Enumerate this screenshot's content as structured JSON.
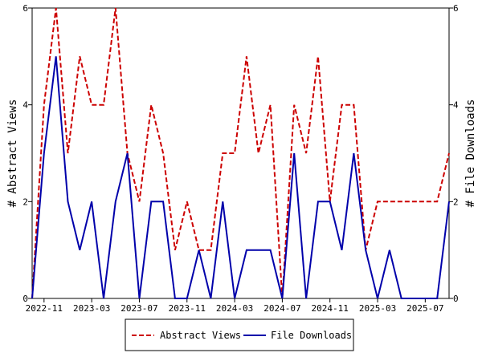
{
  "chart_data": {
    "type": "line",
    "x": [
      "2022-10",
      "2022-11",
      "2022-12",
      "2023-01",
      "2023-02",
      "2023-03",
      "2023-04",
      "2023-05",
      "2023-06",
      "2023-07",
      "2023-08",
      "2023-09",
      "2023-10",
      "2023-11",
      "2023-12",
      "2024-01",
      "2024-02",
      "2024-03",
      "2024-04",
      "2024-05",
      "2024-06",
      "2024-07",
      "2024-08",
      "2024-09",
      "2024-10",
      "2024-11",
      "2024-12",
      "2025-01",
      "2025-02",
      "2025-03",
      "2025-04",
      "2025-05",
      "2025-06",
      "2025-07",
      "2025-08",
      "2025-09"
    ],
    "x_ticks": [
      "2022-11",
      "2023-03",
      "2023-07",
      "2023-11",
      "2024-03",
      "2024-07",
      "2024-11",
      "2025-03",
      "2025-07"
    ],
    "series": [
      {
        "name": "Abstract Views",
        "axis": "left",
        "color": "#cc0000",
        "dash": "dashed",
        "values": [
          0,
          4,
          6,
          3,
          5,
          4,
          4,
          6,
          3,
          2,
          4,
          3,
          1,
          2,
          1,
          1,
          3,
          3,
          5,
          3,
          4,
          0,
          4,
          3,
          5,
          2,
          4,
          4,
          1,
          2,
          2,
          2,
          2,
          2,
          2,
          3
        ]
      },
      {
        "name": "File Downloads",
        "axis": "right",
        "color": "#0000aa",
        "dash": "solid",
        "values": [
          0,
          3,
          5,
          2,
          1,
          2,
          0,
          2,
          3,
          0,
          2,
          2,
          0,
          0,
          1,
          0,
          2,
          0,
          1,
          1,
          1,
          0,
          3,
          0,
          2,
          2,
          1,
          3,
          1,
          0,
          1,
          0,
          0,
          0,
          0,
          2
        ]
      }
    ],
    "ylabel_left": "# Abstract Views",
    "ylabel_right": "# File Downloads",
    "ylim": [
      0,
      6
    ],
    "y_ticks": [
      0,
      2,
      4,
      6
    ],
    "legend_position": "bottom",
    "grid": false
  }
}
